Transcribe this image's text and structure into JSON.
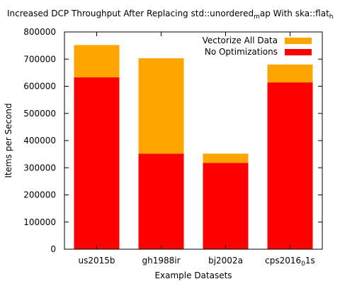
{
  "chart_data": {
    "type": "bar",
    "stacked": true,
    "title_parts": [
      {
        "text": "Increased DCP Throughput After Replacing std::unordered"
      },
      {
        "text": "m",
        "sub": true
      },
      {
        "text": "ap With ska::flat"
      },
      {
        "text": "h",
        "sub": true
      }
    ],
    "xlabel": "Example Datasets",
    "ylabel": "Items per Second",
    "ylim": [
      0,
      800000
    ],
    "yticks": [
      0,
      100000,
      200000,
      300000,
      400000,
      500000,
      600000,
      700000,
      800000
    ],
    "ytick_labels": [
      "0",
      "100000",
      "200000",
      "300000",
      "400000",
      "500000",
      "600000",
      "700000",
      "800000"
    ],
    "categories": [
      [
        {
          "text": "us2015b"
        }
      ],
      [
        {
          "text": "gh1988ir"
        }
      ],
      [
        {
          "text": "bj2002a"
        }
      ],
      [
        {
          "text": "cps2016"
        },
        {
          "text": "0",
          "sub": true
        },
        {
          "text": "1s"
        }
      ]
    ],
    "totals": [
      752000,
      703000,
      352000,
      680000
    ],
    "series": [
      {
        "name": "No Optimizations",
        "color": "#ff0000",
        "values": [
          633000,
          352000,
          318000,
          614000
        ]
      },
      {
        "name": "Vectorize All Data",
        "color": "#ffa500",
        "values": [
          119000,
          351000,
          34000,
          66000
        ]
      }
    ],
    "legend_order": [
      1,
      0
    ],
    "legend_position": "top-right",
    "grid": false
  }
}
